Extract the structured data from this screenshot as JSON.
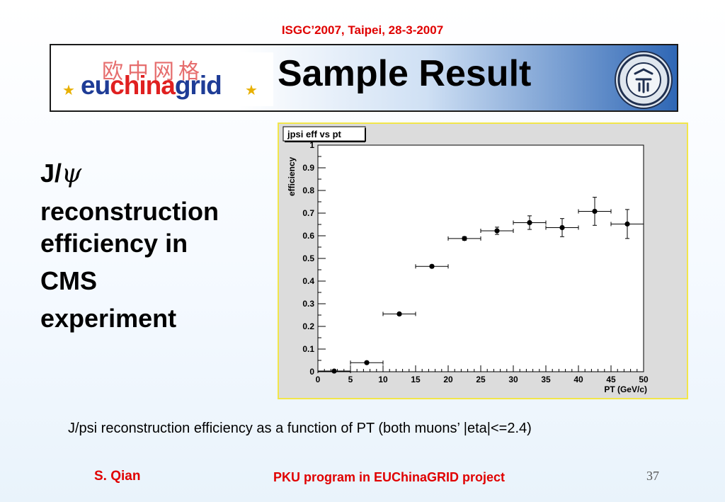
{
  "header": {
    "conference": "ISGC’2007, Taipei, 28-3-2007",
    "title": "Sample Result",
    "logo_left_cn": "欧中网格",
    "logo_left_en": {
      "part1": "eu",
      "part2": "china",
      "part3": "grid"
    },
    "logo_right": "PKU seal"
  },
  "bullet": {
    "line1": "J/ψ",
    "line2": "reconstruction",
    "line3": "efficiency in",
    "line4": "CMS",
    "line5": "experiment"
  },
  "caption": "J/psi reconstruction efficiency as a function of PT (both muons’ |eta|<=2.4)",
  "footer": {
    "author": "S. Qian",
    "program": "PKU program in EUChinaGRID project",
    "page": "37"
  },
  "chart_data": {
    "type": "scatter",
    "title": "jpsi eff vs pt",
    "xlabel": "PT  (GeV/c)",
    "ylabel": "efficiency",
    "xlim": [
      0,
      50
    ],
    "ylim": [
      0,
      1
    ],
    "x_ticks": [
      0,
      5,
      10,
      15,
      20,
      25,
      30,
      35,
      40,
      45,
      50
    ],
    "y_ticks": [
      0,
      0.1,
      0.2,
      0.3,
      0.4,
      0.5,
      0.6,
      0.7,
      0.8,
      0.9,
      1
    ],
    "grid": false,
    "points": [
      {
        "x": 2.5,
        "y": 0.003,
        "xerr": 2.5,
        "yerr": 0.004
      },
      {
        "x": 7.5,
        "y": 0.04,
        "xerr": 2.5,
        "yerr": 0.004
      },
      {
        "x": 12.5,
        "y": 0.255,
        "xerr": 2.5,
        "yerr": 0.006
      },
      {
        "x": 17.5,
        "y": 0.465,
        "xerr": 2.5,
        "yerr": 0.006
      },
      {
        "x": 22.5,
        "y": 0.588,
        "xerr": 2.5,
        "yerr": 0.008
      },
      {
        "x": 27.5,
        "y": 0.622,
        "xerr": 2.5,
        "yerr": 0.016
      },
      {
        "x": 32.5,
        "y": 0.658,
        "xerr": 2.5,
        "yerr": 0.03
      },
      {
        "x": 37.5,
        "y": 0.636,
        "xerr": 2.5,
        "yerr": 0.04
      },
      {
        "x": 42.5,
        "y": 0.708,
        "xerr": 2.5,
        "yerr": 0.062
      },
      {
        "x": 47.5,
        "y": 0.652,
        "xerr": 2.5,
        "yerr": 0.064
      }
    ],
    "colors": {
      "frame": "#f2e64a",
      "pad": "#dcdcdc",
      "plot": "#ffffff",
      "marker": "#000000"
    }
  }
}
